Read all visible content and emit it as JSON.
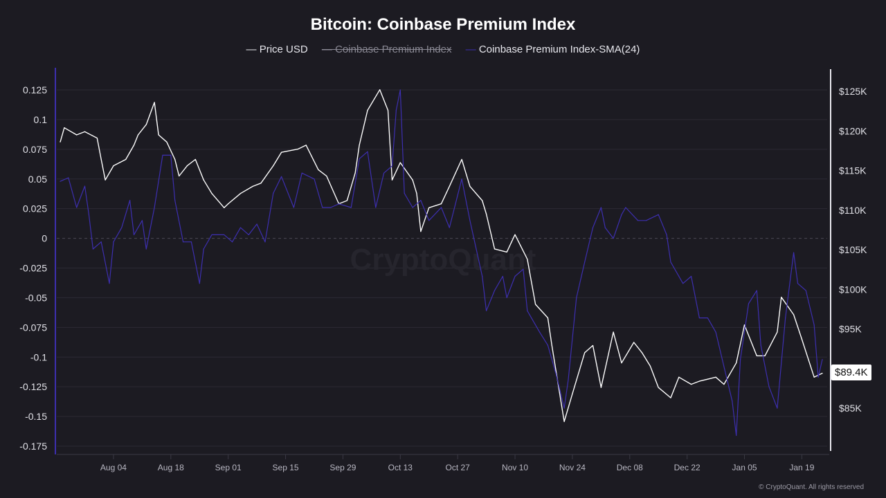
{
  "title": "Bitcoin: Coinbase Premium Index",
  "legend": [
    {
      "label": "Price USD",
      "marker": "—",
      "hidden": false
    },
    {
      "label": "Coinbase Premium Index",
      "marker": "—",
      "hidden": true
    },
    {
      "label": "Coinbase Premium Index-SMA(24)",
      "marker": "—",
      "hidden": false
    }
  ],
  "watermark": "CryptoQuant",
  "footer": "© CryptoQuant. All rights reserved",
  "current_price_label": "$89.4K",
  "colors": {
    "background": "#1c1b22",
    "price": "#ffffff",
    "sma": "#3d2fb0",
    "left_axis": "#3d2fb0",
    "grid": "#2c2b34"
  },
  "chart_data": {
    "type": "line",
    "title": "Bitcoin: Coinbase Premium Index",
    "x_range": [
      "2025-07-22",
      "2026-01-24"
    ],
    "x_ticks": [
      {
        "date": "2025-08-04",
        "label": "Aug 04"
      },
      {
        "date": "2025-08-18",
        "label": "Aug 18"
      },
      {
        "date": "2025-09-01",
        "label": "Sep 01"
      },
      {
        "date": "2025-09-15",
        "label": "Sep 15"
      },
      {
        "date": "2025-09-29",
        "label": "Sep 29"
      },
      {
        "date": "2025-10-13",
        "label": "Oct 13"
      },
      {
        "date": "2025-10-27",
        "label": "Oct 27"
      },
      {
        "date": "2025-11-10",
        "label": "Nov 10"
      },
      {
        "date": "2025-11-24",
        "label": "Nov 24"
      },
      {
        "date": "2025-12-08",
        "label": "Dec 08"
      },
      {
        "date": "2025-12-22",
        "label": "Dec 22"
      },
      {
        "date": "2026-01-05",
        "label": "Jan 05"
      },
      {
        "date": "2026-01-19",
        "label": "Jan 19"
      }
    ],
    "left_axis": {
      "range": [
        -0.175,
        0.125
      ],
      "ticks": [
        {
          "value": 0.125,
          "label": "0.125"
        },
        {
          "value": 0.1,
          "label": "0.1"
        },
        {
          "value": 0.075,
          "label": "0.075"
        },
        {
          "value": 0.05,
          "label": "0.05"
        },
        {
          "value": 0.025,
          "label": "0.025"
        },
        {
          "value": 0,
          "label": "0"
        },
        {
          "value": -0.025,
          "label": "-0.025"
        },
        {
          "value": -0.05,
          "label": "-0.05"
        },
        {
          "value": -0.075,
          "label": "-0.075"
        },
        {
          "value": -0.1,
          "label": "-0.1"
        },
        {
          "value": -0.125,
          "label": "-0.125"
        },
        {
          "value": -0.15,
          "label": "-0.15"
        },
        {
          "value": -0.175,
          "label": "-0.175"
        }
      ]
    },
    "right_axis": {
      "unit": "USD (thousands)",
      "range": [
        85,
        125
      ],
      "ticks": [
        {
          "value": 125,
          "label": "$125K"
        },
        {
          "value": 120,
          "label": "$120K"
        },
        {
          "value": 115,
          "label": "$115K"
        },
        {
          "value": 110,
          "label": "$110K"
        },
        {
          "value": 105,
          "label": "$105K"
        },
        {
          "value": 100,
          "label": "$100K"
        },
        {
          "value": 95,
          "label": "$95K"
        },
        {
          "value": 85,
          "label": "$85K"
        }
      ]
    },
    "grid": true,
    "legend_position": "top",
    "series": [
      {
        "name": "Price USD",
        "axis": "right",
        "points": [
          [
            "2025-07-22",
            118.6
          ],
          [
            "2025-07-23",
            120.4
          ],
          [
            "2025-07-26",
            119.5
          ],
          [
            "2025-07-28",
            119.9
          ],
          [
            "2025-07-31",
            119.1
          ],
          [
            "2025-08-01",
            116.4
          ],
          [
            "2025-08-02",
            113.8
          ],
          [
            "2025-08-04",
            115.6
          ],
          [
            "2025-08-07",
            116.4
          ],
          [
            "2025-08-09",
            118.2
          ],
          [
            "2025-08-10",
            119.5
          ],
          [
            "2025-08-12",
            120.8
          ],
          [
            "2025-08-14",
            123.6
          ],
          [
            "2025-08-15",
            119.5
          ],
          [
            "2025-08-17",
            118.6
          ],
          [
            "2025-08-19",
            116.4
          ],
          [
            "2025-08-20",
            114.3
          ],
          [
            "2025-08-22",
            115.6
          ],
          [
            "2025-08-24",
            116.4
          ],
          [
            "2025-08-26",
            113.8
          ],
          [
            "2025-08-28",
            112.1
          ],
          [
            "2025-08-31",
            110.3
          ],
          [
            "2025-09-01",
            110.8
          ],
          [
            "2025-09-04",
            112.1
          ],
          [
            "2025-09-07",
            113.0
          ],
          [
            "2025-09-09",
            113.4
          ],
          [
            "2025-09-12",
            115.6
          ],
          [
            "2025-09-14",
            117.3
          ],
          [
            "2025-09-18",
            117.7
          ],
          [
            "2025-09-20",
            118.2
          ],
          [
            "2025-09-23",
            115.1
          ],
          [
            "2025-09-25",
            114.3
          ],
          [
            "2025-09-28",
            110.8
          ],
          [
            "2025-09-30",
            111.2
          ],
          [
            "2025-10-02",
            114.7
          ],
          [
            "2025-10-03",
            118.2
          ],
          [
            "2025-10-05",
            122.6
          ],
          [
            "2025-10-08",
            125.2
          ],
          [
            "2025-10-10",
            122.6
          ],
          [
            "2025-10-11",
            113.8
          ],
          [
            "2025-10-13",
            116.0
          ],
          [
            "2025-10-16",
            113.8
          ],
          [
            "2025-10-17",
            112.1
          ],
          [
            "2025-10-18",
            107.3
          ],
          [
            "2025-10-20",
            110.3
          ],
          [
            "2025-10-23",
            110.8
          ],
          [
            "2025-10-25",
            113.0
          ],
          [
            "2025-10-28",
            116.4
          ],
          [
            "2025-10-30",
            113.0
          ],
          [
            "2025-11-02",
            111.2
          ],
          [
            "2025-11-03",
            109.5
          ],
          [
            "2025-11-05",
            105.1
          ],
          [
            "2025-11-08",
            104.7
          ],
          [
            "2025-11-10",
            106.9
          ],
          [
            "2025-11-13",
            103.8
          ],
          [
            "2025-11-15",
            98.1
          ],
          [
            "2025-11-18",
            96.4
          ],
          [
            "2025-11-19",
            92.9
          ],
          [
            "2025-11-22",
            83.3
          ],
          [
            "2025-11-24",
            86.8
          ],
          [
            "2025-11-27",
            92.0
          ],
          [
            "2025-11-29",
            92.9
          ],
          [
            "2025-12-01",
            87.6
          ],
          [
            "2025-12-04",
            94.6
          ],
          [
            "2025-12-06",
            90.7
          ],
          [
            "2025-12-09",
            93.3
          ],
          [
            "2025-12-11",
            92.0
          ],
          [
            "2025-12-13",
            90.3
          ],
          [
            "2025-12-15",
            87.6
          ],
          [
            "2025-12-18",
            86.3
          ],
          [
            "2025-12-20",
            88.9
          ],
          [
            "2025-12-23",
            88.0
          ],
          [
            "2025-12-25",
            88.4
          ],
          [
            "2025-12-29",
            88.9
          ],
          [
            "2025-12-31",
            88.0
          ],
          [
            "2026-01-03",
            90.7
          ],
          [
            "2026-01-05",
            95.5
          ],
          [
            "2026-01-08",
            91.6
          ],
          [
            "2026-01-10",
            91.6
          ],
          [
            "2026-01-13",
            94.6
          ],
          [
            "2026-01-14",
            99.0
          ],
          [
            "2026-01-17",
            96.8
          ],
          [
            "2026-01-19",
            93.7
          ],
          [
            "2026-01-22",
            88.9
          ],
          [
            "2026-01-24",
            89.4
          ]
        ]
      },
      {
        "name": "Coinbase Premium Index-SMA(24)",
        "axis": "left",
        "points": [
          [
            "2025-07-22",
            0.048
          ],
          [
            "2025-07-24",
            0.051
          ],
          [
            "2025-07-26",
            0.026
          ],
          [
            "2025-07-28",
            0.044
          ],
          [
            "2025-07-29",
            0.02
          ],
          [
            "2025-07-30",
            -0.009
          ],
          [
            "2025-08-01",
            -0.003
          ],
          [
            "2025-08-03",
            -0.038
          ],
          [
            "2025-08-04",
            -0.003
          ],
          [
            "2025-08-06",
            0.009
          ],
          [
            "2025-08-08",
            0.032
          ],
          [
            "2025-08-09",
            0.003
          ],
          [
            "2025-08-11",
            0.015
          ],
          [
            "2025-08-12",
            -0.009
          ],
          [
            "2025-08-14",
            0.026
          ],
          [
            "2025-08-16",
            0.07
          ],
          [
            "2025-08-18",
            0.07
          ],
          [
            "2025-08-19",
            0.032
          ],
          [
            "2025-08-21",
            -0.003
          ],
          [
            "2025-08-23",
            -0.003
          ],
          [
            "2025-08-25",
            -0.038
          ],
          [
            "2025-08-26",
            -0.009
          ],
          [
            "2025-08-28",
            0.003
          ],
          [
            "2025-08-31",
            0.003
          ],
          [
            "2025-09-02",
            -0.003
          ],
          [
            "2025-09-04",
            0.009
          ],
          [
            "2025-09-06",
            0.003
          ],
          [
            "2025-09-08",
            0.012
          ],
          [
            "2025-09-10",
            -0.003
          ],
          [
            "2025-09-12",
            0.038
          ],
          [
            "2025-09-14",
            0.052
          ],
          [
            "2025-09-17",
            0.026
          ],
          [
            "2025-09-19",
            0.055
          ],
          [
            "2025-09-22",
            0.05
          ],
          [
            "2025-09-24",
            0.026
          ],
          [
            "2025-09-26",
            0.026
          ],
          [
            "2025-09-28",
            0.029
          ],
          [
            "2025-10-01",
            0.026
          ],
          [
            "2025-10-03",
            0.067
          ],
          [
            "2025-10-05",
            0.073
          ],
          [
            "2025-10-07",
            0.026
          ],
          [
            "2025-10-09",
            0.055
          ],
          [
            "2025-10-11",
            0.061
          ],
          [
            "2025-10-12",
            0.108
          ],
          [
            "2025-10-13",
            0.125
          ],
          [
            "2025-10-14",
            0.038
          ],
          [
            "2025-10-16",
            0.026
          ],
          [
            "2025-10-18",
            0.032
          ],
          [
            "2025-10-20",
            0.015
          ],
          [
            "2025-10-23",
            0.026
          ],
          [
            "2025-10-25",
            0.009
          ],
          [
            "2025-10-28",
            0.05
          ],
          [
            "2025-10-30",
            0.015
          ],
          [
            "2025-11-02",
            -0.032
          ],
          [
            "2025-11-03",
            -0.061
          ],
          [
            "2025-11-05",
            -0.044
          ],
          [
            "2025-11-07",
            -0.032
          ],
          [
            "2025-11-08",
            -0.05
          ],
          [
            "2025-11-10",
            -0.032
          ],
          [
            "2025-11-12",
            -0.026
          ],
          [
            "2025-11-13",
            -0.061
          ],
          [
            "2025-11-16",
            -0.079
          ],
          [
            "2025-11-18",
            -0.09
          ],
          [
            "2025-11-20",
            -0.114
          ],
          [
            "2025-11-22",
            -0.143
          ],
          [
            "2025-11-23",
            -0.119
          ],
          [
            "2025-11-25",
            -0.05
          ],
          [
            "2025-11-27",
            -0.02
          ],
          [
            "2025-11-29",
            0.009
          ],
          [
            "2025-12-01",
            0.026
          ],
          [
            "2025-12-02",
            0.009
          ],
          [
            "2025-12-04",
            0.0
          ],
          [
            "2025-12-06",
            0.02
          ],
          [
            "2025-12-07",
            0.026
          ],
          [
            "2025-12-10",
            0.015
          ],
          [
            "2025-12-12",
            0.015
          ],
          [
            "2025-12-15",
            0.02
          ],
          [
            "2025-12-17",
            0.003
          ],
          [
            "2025-12-18",
            -0.02
          ],
          [
            "2025-12-21",
            -0.038
          ],
          [
            "2025-12-23",
            -0.032
          ],
          [
            "2025-12-25",
            -0.067
          ],
          [
            "2025-12-27",
            -0.067
          ],
          [
            "2025-12-29",
            -0.079
          ],
          [
            "2025-12-31",
            -0.108
          ],
          [
            "2026-01-02",
            -0.137
          ],
          [
            "2026-01-03",
            -0.166
          ],
          [
            "2026-01-04",
            -0.102
          ],
          [
            "2026-01-06",
            -0.055
          ],
          [
            "2026-01-08",
            -0.044
          ],
          [
            "2026-01-09",
            -0.09
          ],
          [
            "2026-01-11",
            -0.125
          ],
          [
            "2026-01-13",
            -0.143
          ],
          [
            "2026-01-15",
            -0.067
          ],
          [
            "2026-01-17",
            -0.012
          ],
          [
            "2026-01-18",
            -0.038
          ],
          [
            "2026-01-20",
            -0.044
          ],
          [
            "2026-01-22",
            -0.073
          ],
          [
            "2026-01-23",
            -0.117
          ],
          [
            "2026-01-24",
            -0.102
          ]
        ]
      }
    ]
  }
}
